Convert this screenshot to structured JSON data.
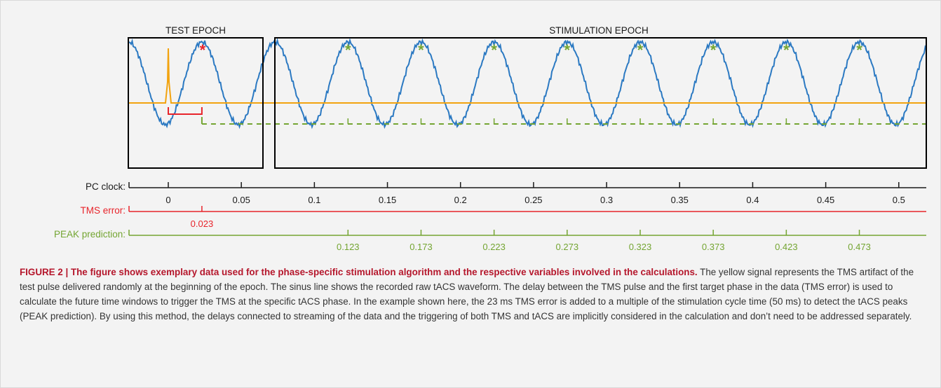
{
  "figure": {
    "test_epoch_label": "TEST EPOCH",
    "stimulation_epoch_label": "STIMULATION EPOCH",
    "marker_symbol": "*",
    "colors": {
      "tacs_wave": "#2b79c2",
      "tms_artifact": "#f2a30f",
      "error": "#e8242b",
      "prediction": "#74a532",
      "axis": "#1a1a1a",
      "caption_head": "#b5172c",
      "background": "#f3f3f3"
    }
  },
  "chart_data": {
    "type": "line",
    "series": [
      {
        "signal": "tACS waveform",
        "period_s": 0.05,
        "first_peak_s": 0.023
      },
      {
        "signal": "TMS artifact",
        "pulse_time_s": 0.0
      }
    ],
    "axes": [
      {
        "label": "PC clock:",
        "ticks": [
          0,
          0.05,
          0.1,
          0.15,
          0.2,
          0.25,
          0.3,
          0.35,
          0.4,
          0.45,
          0.5
        ],
        "tick_labels": [
          "0",
          "0.05",
          "0.1",
          "0.15",
          "0.2",
          "0.25",
          "0.3",
          "0.35",
          "0.4",
          "0.45",
          "0.5"
        ]
      },
      {
        "label": "TMS error:",
        "ticks": [
          0.023
        ],
        "tick_labels": [
          "0.023"
        ]
      },
      {
        "label": "PEAK prediction:",
        "ticks": [
          0.123,
          0.173,
          0.223,
          0.273,
          0.323,
          0.373,
          0.423,
          0.473
        ],
        "tick_labels": [
          "0.123",
          "0.173",
          "0.223",
          "0.273",
          "0.323",
          "0.373",
          "0.423",
          "0.473"
        ]
      }
    ],
    "epochs": [
      "TEST EPOCH",
      "STIMULATION EPOCH"
    ],
    "xlim": [
      -0.027,
      0.52
    ]
  },
  "caption": {
    "heading": "FIGURE 2 | The figure shows exemplary data used for the phase-specific stimulation algorithm and the respective variables involved in the calculations.",
    "body": " The yellow signal represents the TMS artifact of the test pulse delivered randomly at the beginning of the epoch. The sinus line shows the recorded raw tACS waveform. The delay between the TMS pulse and the first target phase in the data (TMS error) is used to calculate the future time windows to trigger the TMS at the specific tACS phase. In the example shown here, the 23 ms TMS error is added to a multiple of the stimulation cycle time (50 ms) to detect the tACS peaks (PEAK prediction). By using this method, the delays connected to streaming of the data and the triggering of both TMS and tACS are implicitly considered in the calculation and don’t need to be addressed separately."
  }
}
